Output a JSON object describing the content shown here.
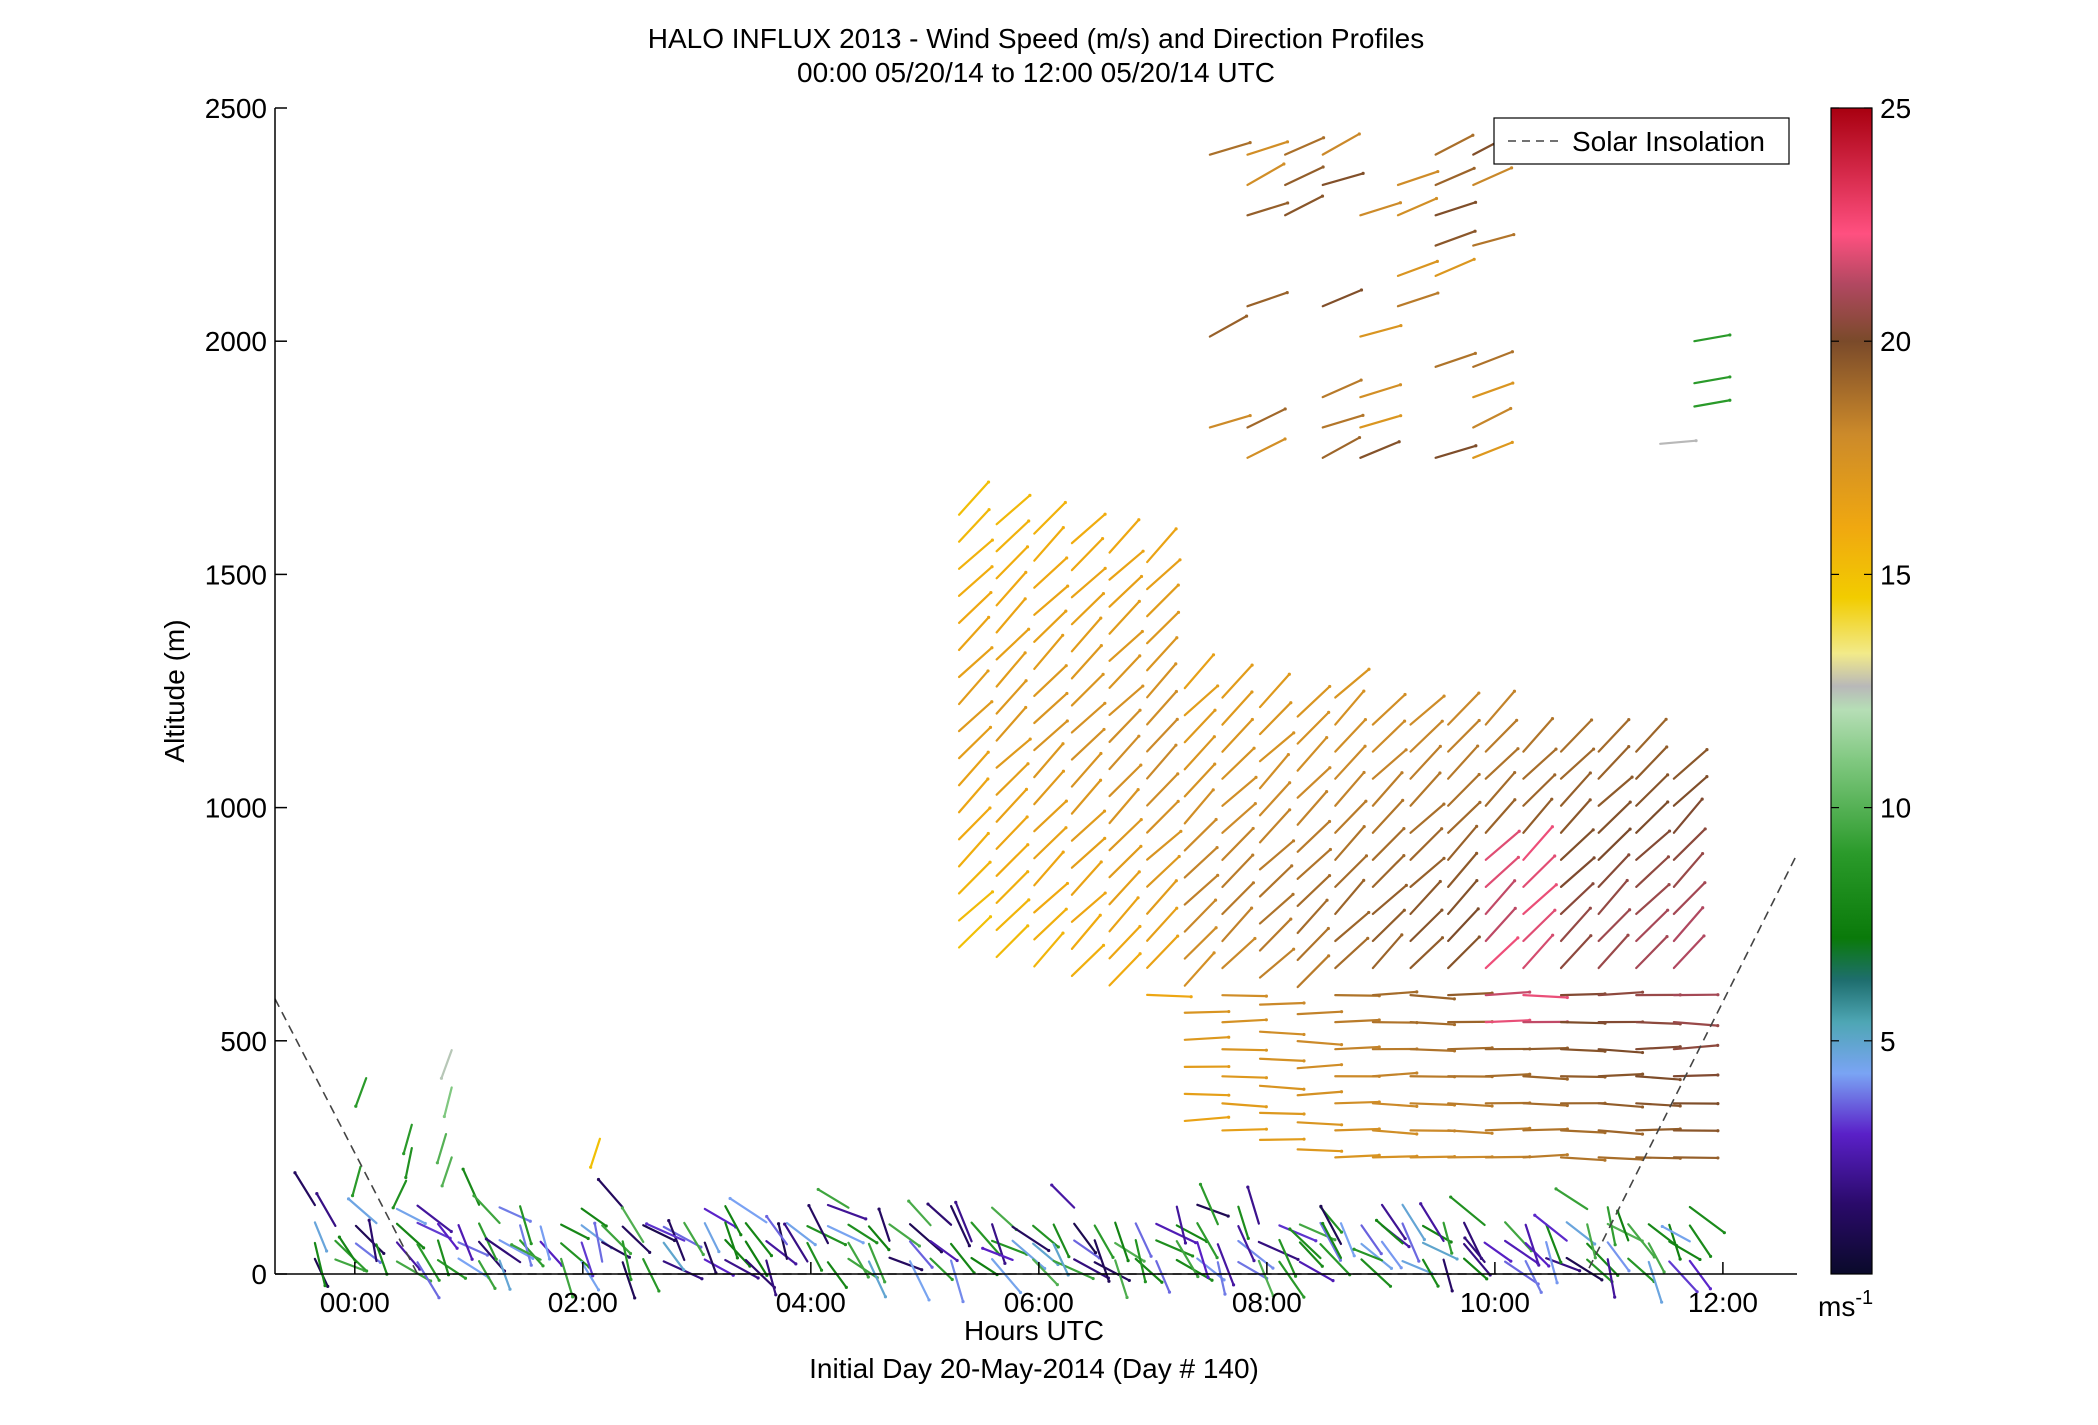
{
  "chart_data": {
    "type": "wind-barb-profile",
    "title": "HALO INFLUX 2013 - Wind Speed (m/s) and Direction Profiles",
    "subtitle": "00:00 05/20/14 to 12:00 05/20/14  UTC",
    "xlabel": "Hours UTC",
    "xlabel_note": "Initial Day 20-May-2014 (Day # 140)",
    "ylabel": "Altitude (m)",
    "xlim": [
      -0.7,
      12.65
    ],
    "ylim": [
      0,
      2500
    ],
    "x_ticks": [
      {
        "value": 0,
        "label": "00:00"
      },
      {
        "value": 2,
        "label": "02:00"
      },
      {
        "value": 4,
        "label": "04:00"
      },
      {
        "value": 6,
        "label": "06:00"
      },
      {
        "value": 8,
        "label": "08:00"
      },
      {
        "value": 10,
        "label": "10:00"
      },
      {
        "value": 12,
        "label": "12:00"
      }
    ],
    "y_ticks": [
      0,
      500,
      1000,
      1500,
      2000,
      2500
    ],
    "legend": {
      "entries": [
        "Solar Insolation"
      ],
      "placement": "top-right"
    },
    "colorbar": {
      "range": [
        0,
        25
      ],
      "ticks": [
        5,
        10,
        15,
        20,
        25
      ],
      "unit_label": "ms",
      "unit_exponent": "-1",
      "stops": [
        {
          "v": 0,
          "color": "#0a0a2a"
        },
        {
          "v": 1.5,
          "color": "#2a0a6a"
        },
        {
          "v": 3,
          "color": "#5a20c8"
        },
        {
          "v": 4.3,
          "color": "#7aa4f4"
        },
        {
          "v": 5.4,
          "color": "#4ea6b4"
        },
        {
          "v": 6.3,
          "color": "#1e6e6e"
        },
        {
          "v": 7.2,
          "color": "#0a7a0a"
        },
        {
          "v": 9,
          "color": "#2a9a2a"
        },
        {
          "v": 11,
          "color": "#80c880"
        },
        {
          "v": 12.1,
          "color": "#b6deb6"
        },
        {
          "v": 12.6,
          "color": "#b8b8b8"
        },
        {
          "v": 13.3,
          "color": "#f2ea8a"
        },
        {
          "v": 14.5,
          "color": "#f2cc00"
        },
        {
          "v": 16,
          "color": "#f0a810"
        },
        {
          "v": 18,
          "color": "#cc8a2a"
        },
        {
          "v": 20,
          "color": "#7a4a2a"
        },
        {
          "v": 21.2,
          "color": "#b04860"
        },
        {
          "v": 22.3,
          "color": "#ff5080"
        },
        {
          "v": 25,
          "color": "#a80010"
        }
      ]
    },
    "solar_insolation_line": [
      {
        "x": -0.7,
        "y": 590
      },
      {
        "x": 0.55,
        "y": 0
      },
      {
        "x": 10.8,
        "y": 0
      },
      {
        "x": 12.65,
        "y": 900
      }
    ],
    "wind_barbs": {
      "description": "Wind vectors drawn at profile times and altitudes; color encodes wind speed (m/s) on the colorbar scale.",
      "surface_layer": {
        "altitude_range": [
          0,
          160
        ],
        "speed_range": [
          1,
          10
        ],
        "time_range": [
          -0.4,
          11.8
        ]
      },
      "jet_region": {
        "time_range": [
          5.3,
          11.8
        ],
        "altitude_range": [
          250,
          1700
        ],
        "speed_range": [
          14,
          23
        ]
      },
      "upper_winds": {
        "time_range": [
          7.5,
          10.0
        ],
        "altitude_range": [
          1750,
          2420
        ],
        "speed_range": [
          16,
          20
        ]
      },
      "upper_right_green": {
        "time": 11.75,
        "altitudes": [
          1860,
          1910,
          2000
        ],
        "speed": 9
      }
    }
  }
}
